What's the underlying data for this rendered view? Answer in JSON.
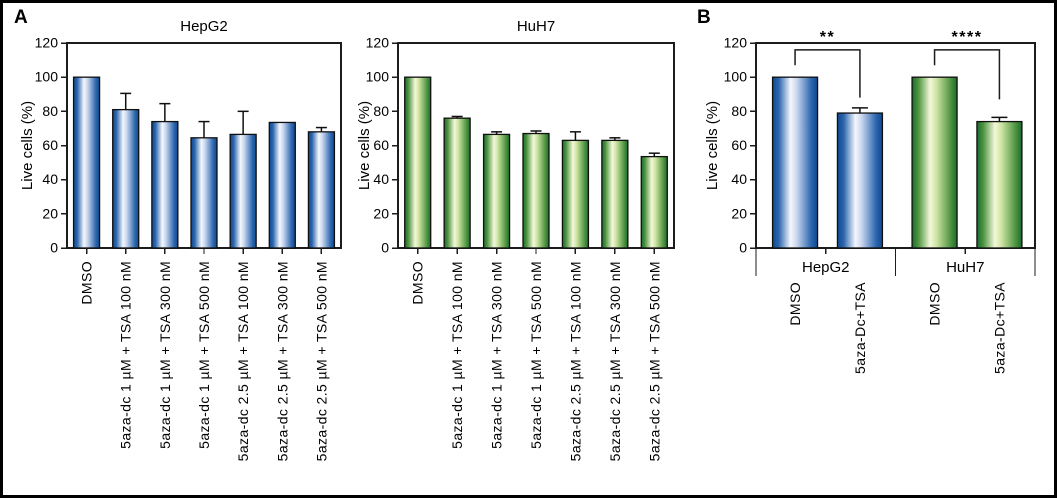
{
  "panels": {
    "a": "A",
    "b": "B"
  },
  "colors": {
    "blue_dark": "#10488f",
    "blue_mid": "#2b66ae",
    "blue_light": "#f5f8fd",
    "blue_soft": "#c8d6ee",
    "green_dark": "#1a6b2c",
    "green_mid": "#4d9440",
    "green_light": "#f4f8da",
    "green_soft": "#cfe5a5",
    "outline": "#101010",
    "axis": "#1c1c1c",
    "star": "#1f3864",
    "text": "#000000"
  },
  "chart_data": [
    {
      "type": "bar",
      "panel": "A",
      "title": "HepG2",
      "ylabel": "Live cells (%)",
      "ylim": [
        0,
        120
      ],
      "yticks": [
        0,
        20,
        40,
        60,
        80,
        100,
        120
      ],
      "grid": false,
      "legend": null,
      "bar_color": "blue",
      "categories": [
        "DMSO",
        "5aza-dc 1 µM + TSA 100 nM",
        "5aza-dc 1 µM + TSA 300 nM",
        "5aza-dc 1 µM + TSA 500 nM",
        "5aza-dc 2.5 µM + TSA 100 nM",
        "5aza-dc 2.5 µM + TSA 300 nM",
        "5aza-dc 2.5 µM + TSA 500 nM"
      ],
      "values": [
        100,
        81,
        74,
        64.5,
        66.5,
        73.5,
        68
      ],
      "errors_plus": [
        0,
        9.5,
        10.5,
        9.5,
        13.5,
        0,
        2.5
      ]
    },
    {
      "type": "bar",
      "panel": "A",
      "title": "HuH7",
      "ylabel": "Live cells (%)",
      "ylim": [
        0,
        120
      ],
      "yticks": [
        0,
        20,
        40,
        60,
        80,
        100,
        120
      ],
      "grid": false,
      "legend": null,
      "bar_color": "green",
      "categories": [
        "DMSO",
        "5aza-dc 1 µM + TSA 100 nM",
        "5aza-dc 1 µM + TSA 300 nM",
        "5aza-dc 1 µM + TSA 500 nM",
        "5aza-dc 2.5 µM + TSA 100 nM",
        "5aza-dc 2.5 µM + TSA 300 nM",
        "5aza-dc 2.5 µM + TSA 500 nM"
      ],
      "values": [
        100,
        76,
        66.5,
        67,
        63,
        63,
        53.5
      ],
      "errors_plus": [
        0,
        1,
        1.5,
        1.5,
        5,
        1.5,
        2
      ]
    },
    {
      "type": "grouped_bar",
      "panel": "B",
      "title": "",
      "ylabel": "Live cells (%)",
      "ylim": [
        0,
        120
      ],
      "yticks": [
        0,
        20,
        40,
        60,
        80,
        100,
        120
      ],
      "grid": false,
      "groups": [
        {
          "label": "HepG2",
          "color": "blue",
          "bars": [
            {
              "label": "DMSO",
              "value": 100,
              "error_plus": 0
            },
            {
              "label": "5aza-Dc+TSA",
              "value": 79,
              "error_plus": 3
            }
          ]
        },
        {
          "label": "HuH7",
          "color": "green",
          "bars": [
            {
              "label": "DMSO",
              "value": 100,
              "error_plus": 0
            },
            {
              "label": "5aza-Dc+TSA",
              "value": 74,
              "error_plus": 2.5
            }
          ]
        }
      ],
      "significance": [
        {
          "group": "HepG2",
          "stars": "**",
          "bridge_y": 116,
          "left_drop_to": 107,
          "right_drop_to": 88
        },
        {
          "group": "HuH7",
          "stars": "****",
          "bridge_y": 116,
          "left_drop_to": 107,
          "right_drop_to": 87
        }
      ]
    }
  ]
}
